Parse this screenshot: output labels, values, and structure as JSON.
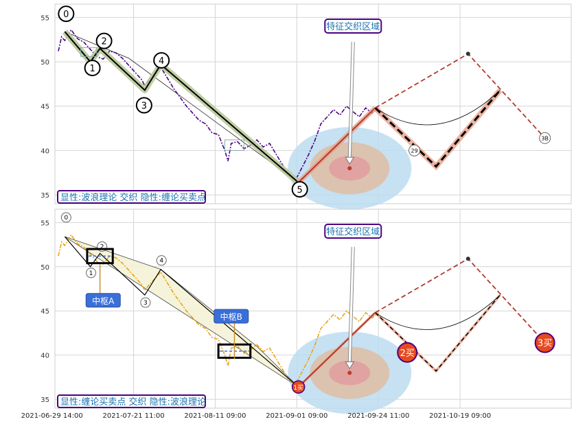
{
  "chart_data": [
    {
      "type": "line",
      "title": "",
      "ylim": [
        34,
        56.5
      ],
      "yticks": [
        35,
        40,
        45,
        50,
        55
      ],
      "grid": true,
      "price_series_color": "#4b0082",
      "price": [
        [
          0,
          51.2
        ],
        [
          1,
          52.8
        ],
        [
          2,
          52.4
        ],
        [
          4,
          53.6
        ],
        [
          6,
          52.6
        ],
        [
          8,
          52.2
        ],
        [
          10,
          51.4
        ],
        [
          12,
          50.6
        ],
        [
          14,
          50.3
        ],
        [
          16,
          51.2
        ],
        [
          18,
          51.0
        ],
        [
          20,
          50.4
        ],
        [
          22,
          49.6
        ],
        [
          24,
          48.8
        ],
        [
          26,
          48.0
        ],
        [
          27,
          47.3
        ],
        [
          28,
          47.8
        ],
        [
          30,
          48.6
        ],
        [
          32,
          49.4
        ],
        [
          34,
          48.2
        ],
        [
          36,
          47.0
        ],
        [
          38,
          46.0
        ],
        [
          40,
          45.0
        ],
        [
          42,
          44.2
        ],
        [
          44,
          43.4
        ],
        [
          46,
          43.0
        ],
        [
          48,
          42.0
        ],
        [
          50,
          41.8
        ],
        [
          52,
          40.0
        ],
        [
          53,
          38.8
        ],
        [
          54,
          40.8
        ],
        [
          56,
          41.0
        ],
        [
          58,
          40.2
        ],
        [
          60,
          40.6
        ],
        [
          62,
          41.2
        ],
        [
          64,
          40.4
        ],
        [
          66,
          40.8
        ],
        [
          68,
          39.6
        ],
        [
          70,
          38.4
        ],
        [
          72,
          37.2
        ],
        [
          74,
          36.6
        ],
        [
          76,
          38.0
        ],
        [
          78,
          39.4
        ],
        [
          80,
          41.0
        ],
        [
          82,
          43.0
        ],
        [
          84,
          43.8
        ],
        [
          86,
          44.6
        ],
        [
          88,
          44.0
        ],
        [
          90,
          45.0
        ],
        [
          92,
          44.4
        ],
        [
          94,
          43.8
        ],
        [
          96,
          44.8
        ],
        [
          98,
          44.2
        ],
        [
          100,
          44.8
        ]
      ],
      "wave_points": [
        {
          "label": "0",
          "x": 2,
          "y": 53.4
        },
        {
          "label": "1",
          "x": 10,
          "y": 50.0
        },
        {
          "label": "2",
          "x": 13,
          "y": 51.5
        },
        {
          "label": "3",
          "x": 27,
          "y": 46.8
        },
        {
          "label": "4",
          "x": 32,
          "y": 49.7
        },
        {
          "label": "5",
          "x": 75,
          "y": 36.4
        }
      ],
      "wave_label_offsets": [
        [
          0,
          28
        ],
        [
          0,
          22
        ],
        [
          -30,
          38
        ],
        [
          0,
          -17
        ],
        [
          -4,
          -6
        ],
        [
          -4,
          4
        ]
      ],
      "forecast_solid": [
        [
          75,
          36.4
        ],
        [
          99,
          44.8
        ]
      ],
      "forecast_dashed_black": [
        [
          99,
          44.8
        ],
        [
          118,
          38.2
        ],
        [
          138,
          46.8
        ]
      ],
      "forecast_dashed_red": [
        [
          99,
          44.8
        ],
        [
          128,
          50.9
        ],
        [
          152,
          41.4
        ]
      ],
      "forecast_labels": [
        "29",
        "3B"
      ],
      "zhongshu_small": [
        [
          7,
          12,
          50.6,
          51.6
        ],
        [
          52,
          58,
          40.0,
          41.2
        ]
      ],
      "thin_line": [
        [
          2,
          53.4
        ],
        [
          22,
          50.4
        ],
        [
          75,
          36.4
        ]
      ],
      "focus": {
        "x": 91,
        "y": 38.0,
        "label": "特征交织区域"
      },
      "caption": "显性:波浪理论 交织 隐性:缠论买卖点"
    },
    {
      "type": "line",
      "title": "",
      "ylim": [
        34,
        56.5
      ],
      "yticks": [
        35,
        40,
        45,
        50,
        55
      ],
      "grid": true,
      "price_series_color": "#e8a317",
      "price": [
        [
          0,
          51.2
        ],
        [
          1,
          52.8
        ],
        [
          2,
          52.4
        ],
        [
          4,
          53.6
        ],
        [
          6,
          52.6
        ],
        [
          8,
          52.2
        ],
        [
          10,
          51.4
        ],
        [
          12,
          50.6
        ],
        [
          14,
          50.3
        ],
        [
          16,
          51.2
        ],
        [
          18,
          51.0
        ],
        [
          20,
          50.4
        ],
        [
          22,
          49.6
        ],
        [
          24,
          48.8
        ],
        [
          26,
          48.0
        ],
        [
          27,
          47.3
        ],
        [
          28,
          47.8
        ],
        [
          30,
          48.6
        ],
        [
          32,
          49.4
        ],
        [
          34,
          48.2
        ],
        [
          36,
          47.0
        ],
        [
          38,
          46.0
        ],
        [
          40,
          45.0
        ],
        [
          42,
          44.2
        ],
        [
          44,
          43.4
        ],
        [
          46,
          43.0
        ],
        [
          48,
          42.0
        ],
        [
          50,
          41.8
        ],
        [
          52,
          40.0
        ],
        [
          53,
          38.8
        ],
        [
          54,
          40.8
        ],
        [
          56,
          41.0
        ],
        [
          58,
          40.2
        ],
        [
          60,
          40.6
        ],
        [
          62,
          41.2
        ],
        [
          64,
          40.4
        ],
        [
          66,
          40.8
        ],
        [
          68,
          39.6
        ],
        [
          70,
          38.4
        ],
        [
          72,
          37.2
        ],
        [
          74,
          36.6
        ],
        [
          76,
          38.0
        ],
        [
          78,
          39.4
        ],
        [
          80,
          41.0
        ],
        [
          82,
          43.0
        ],
        [
          84,
          43.8
        ],
        [
          86,
          44.6
        ],
        [
          88,
          44.0
        ],
        [
          90,
          45.0
        ],
        [
          92,
          44.4
        ],
        [
          94,
          43.8
        ],
        [
          96,
          44.8
        ],
        [
          98,
          44.2
        ],
        [
          100,
          44.8
        ]
      ],
      "wave_points": [
        {
          "label": "0",
          "x": 2,
          "y": 53.4
        },
        {
          "label": "1",
          "x": 10,
          "y": 50.0
        },
        {
          "label": "2",
          "x": 13,
          "y": 51.5
        },
        {
          "label": "3",
          "x": 27,
          "y": 46.8
        },
        {
          "label": "4",
          "x": 32,
          "y": 49.7
        },
        {
          "label": "1买",
          "x": 75,
          "y": 36.4
        }
      ],
      "wave_label_offsets": [
        [
          0,
          0
        ],
        [
          0,
          0
        ],
        [
          0,
          0
        ],
        [
          0,
          0
        ],
        [
          0,
          0
        ],
        [
          0,
          0
        ]
      ],
      "forecast_solid": [
        [
          75,
          36.4
        ],
        [
          99,
          44.8
        ]
      ],
      "forecast_dashed_black": [
        [
          99,
          44.8
        ],
        [
          118,
          38.2
        ],
        [
          138,
          46.8
        ]
      ],
      "forecast_dashed_red": [
        [
          99,
          44.8
        ],
        [
          128,
          50.9
        ],
        [
          152,
          41.4
        ]
      ],
      "buy_points": [
        {
          "label": "2买",
          "x": 109,
          "y": 40.3
        },
        {
          "label": "3买",
          "x": 152,
          "y": 41.4
        }
      ],
      "zhongshu": [
        {
          "label": "中枢A",
          "x0": 9,
          "x1": 17,
          "y0": 50.4,
          "y1": 52.0
        },
        {
          "label": "中枢B",
          "x0": 50,
          "x1": 60,
          "y0": 39.7,
          "y1": 41.2
        }
      ],
      "zhongshu_label_pos": [
        [
          14,
          46.2
        ],
        [
          54,
          44.4
        ]
      ],
      "channel": [
        [
          2,
          53.4
        ],
        [
          75,
          36.4
        ],
        [
          32,
          49.7
        ],
        [
          62,
          41.0
        ]
      ],
      "focus": {
        "x": 91,
        "y": 38.0,
        "label": "特征交织区域"
      },
      "caption": "显性:缠论买卖点 交织 隐性:波浪理论"
    }
  ],
  "x_axis": {
    "domain": [
      0,
      160
    ],
    "ticks": [
      {
        "x": -2,
        "label": "2021-06-29 14:00"
      },
      {
        "x": 23.5,
        "label": "2021-07-21 11:00"
      },
      {
        "x": 49,
        "label": "2021-08-11 09:00"
      },
      {
        "x": 74.5,
        "label": "2021-09-01 09:00"
      },
      {
        "x": 100,
        "label": "2021-09-24 11:00"
      },
      {
        "x": 125.5,
        "label": "2021-10-19 09:00"
      }
    ]
  },
  "colors": {
    "wave_main": "#000000",
    "wave_highlight": "#b9c99a",
    "forecast_red": "#b03a2e",
    "forecast_glow": "#e8a08a",
    "focus_outer": "#bcdcf0",
    "focus_mid": "#ddc0a8",
    "focus_inner": "#e0a0a0",
    "caption_border": "#4b0082",
    "caption_text": "#1a73b0",
    "zhongshu_fill": "#3a6fd8",
    "buy_fill": "#e8491d"
  }
}
